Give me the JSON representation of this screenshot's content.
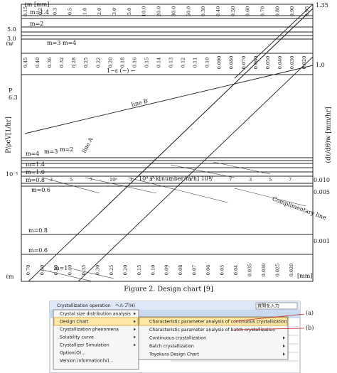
{
  "figure": {
    "labels": {
      "lm_top": "ℓm [mm]",
      "lw": "ℓw",
      "m14_top": "m=1.4",
      "m2_top": "m=2",
      "m3_top": "m=3",
      "m4_top": "m=4",
      "left_50": "5.0",
      "left_30": "3.0",
      "one_minus_eps": "1−ε (−) ←",
      "right_10": "1.0",
      "right_135": "1.35",
      "p": "P",
      "p63": "6.3",
      "y_left": "P/ρcV[1/hr]",
      "y_right": "(dℓ/dθ)w [mm/hr]",
      "line_b": "line B",
      "line_a": "line A",
      "m4_mid": "m=4",
      "m3_mid": "m=3",
      "m2_mid": "m=2",
      "m14_mid": "m=1.4",
      "m10_mid": "m=1.0",
      "m08_mid": "m=0.8",
      "m06_mid": "m=0.6",
      "ten_m1": "10⁻¹",
      "pk": "10⁹ P·k[number/m³h] 10¹⁰",
      "r_0010": "0.010",
      "r_0005": "0.005",
      "r_0001": "0.001",
      "comp_line": "Complimentary line",
      "m08_low": "m=0.8",
      "m06_low": "m=0.6",
      "m1_low": "m=1",
      "lm_bottom": "ℓm",
      "mm_bottom": "[mm]"
    },
    "pk_ticks": [
      "3",
      "5",
      "7",
      "10⁸",
      "3",
      "5",
      "7",
      "3",
      "5",
      "7",
      "3",
      "5",
      "7"
    ],
    "top_ticks": [
      "0.15",
      "0.2",
      "0.3",
      "0.5",
      "1.0",
      "2.0",
      "3.0",
      "5.0",
      "10.0",
      "20.0",
      "30.0",
      "50.0",
      "0.30",
      "0.40",
      "0.50",
      "0.60",
      "0.70",
      "0.80",
      "0.90",
      "0.95"
    ],
    "mid_ticks": [
      "0.45",
      "0.40",
      "0.36",
      "0.32",
      "0.28",
      "0.25",
      "0.22",
      "0.20",
      "0.18",
      "0.16",
      "0.15",
      "0.14",
      "0.13",
      "0.12",
      "0.11",
      "0.10",
      "0.090",
      "0.080",
      "0.070",
      "0.060",
      "0.050",
      "0.040",
      "0.030",
      "0.020"
    ],
    "bottom_ticks": [
      "0.70",
      "0.60",
      "0.50",
      "0.40",
      "0.35",
      "0.30",
      "0.25",
      "0.20",
      "0.15",
      "0.10",
      "0.09",
      "0.08",
      "0.07",
      "0.06",
      "0.05",
      "0.04",
      "0.035",
      "0.030",
      "0.025",
      "0.020"
    ],
    "caption": "Figure 2. Design chart [9]"
  },
  "screenshot": {
    "menu_bar": [
      "Crystallization operation",
      "ヘルプ(H)"
    ],
    "search_box": "質問を入力",
    "menu_items": [
      "Crystal size distribution analysis",
      "Design Chart",
      "Crystallization phenomena",
      "Solubility curve",
      "Crystallizer Simulation",
      "Option(O)...",
      "Version information(V)..."
    ],
    "submenu_items": [
      "Characteristic parameter analysis of continuous crystallization",
      "Characteristic parameter analysis of batch crystallization",
      "Continuous crystallization",
      "Batch crystallization",
      "Toyokura Design Chart"
    ],
    "annotations": [
      "(a)",
      "(b)"
    ]
  }
}
